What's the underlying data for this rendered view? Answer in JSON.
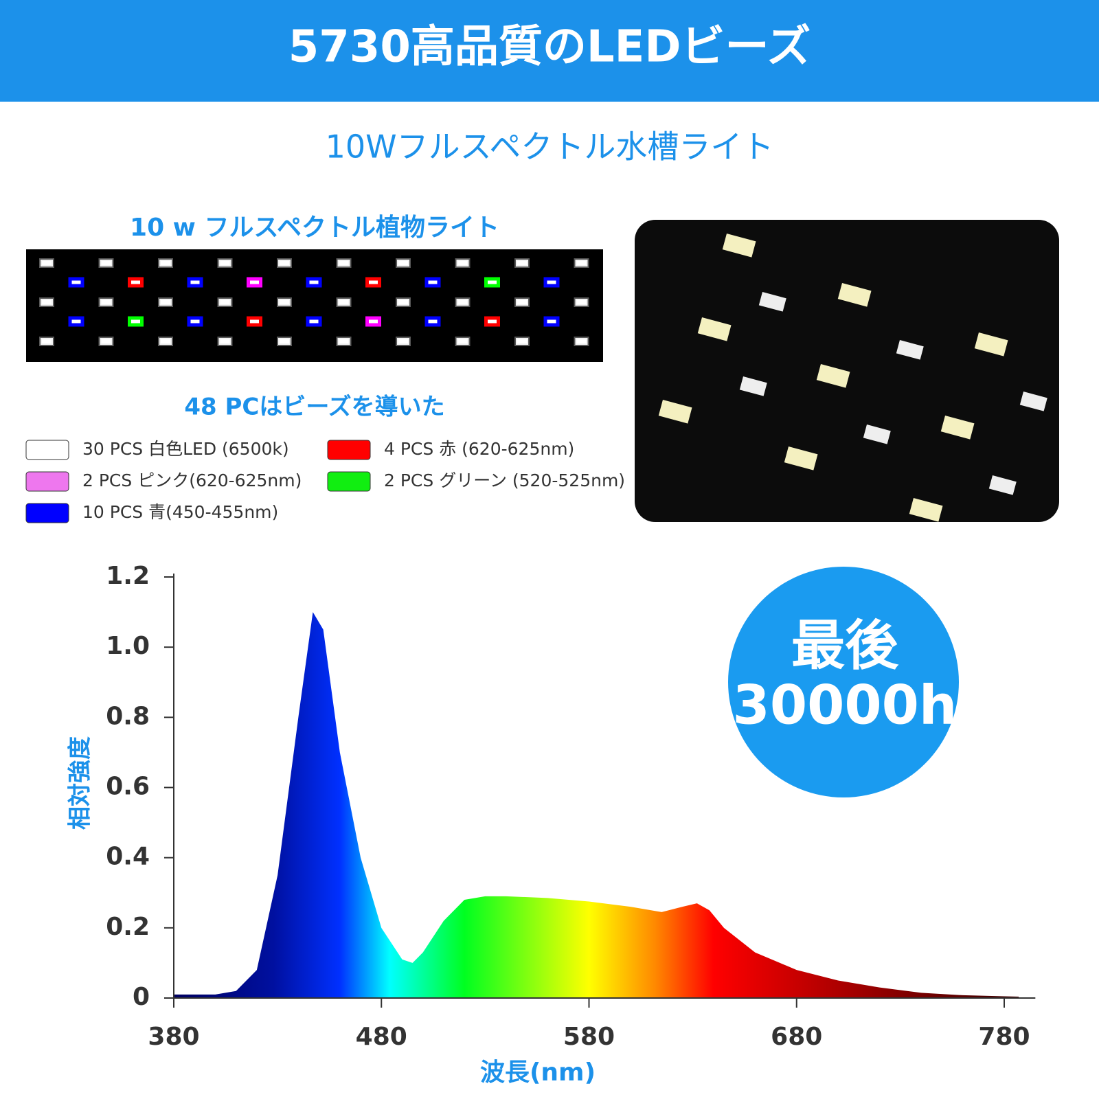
{
  "header": {
    "title": "5730高品質のLEDビーズ"
  },
  "subtitle": "10Wフルスペクトル水槽ライト",
  "panel": {
    "title": "10 w フルスペクトル植物ライト",
    "count_title": "48 PCはビーズを導いた",
    "legend": [
      {
        "label": "30 PCS 白色LED (6500k)",
        "color": "#ffffff"
      },
      {
        "label": "4 PCS 赤 (620-625nm)",
        "color": "#ff0000"
      },
      {
        "label": "2 PCS ピンク(620-625nm)",
        "color": "#ee77ee"
      },
      {
        "label": "2 PCS グリーン (520-525nm)",
        "color": "#11ee11"
      },
      {
        "label": "10 PCS 青(450-455nm)",
        "color": "#0000ff"
      }
    ]
  },
  "badge": {
    "line1": "最後",
    "line2": "30000h"
  },
  "chart_data": {
    "type": "area",
    "xlabel": "波長(nm)",
    "ylabel": "相対強度",
    "x": [
      380,
      400,
      410,
      420,
      430,
      440,
      447,
      452,
      460,
      470,
      480,
      490,
      495,
      500,
      510,
      520,
      530,
      540,
      560,
      580,
      600,
      615,
      625,
      632,
      638,
      645,
      660,
      680,
      700,
      720,
      740,
      760,
      780,
      787
    ],
    "values": [
      0.01,
      0.01,
      0.02,
      0.08,
      0.35,
      0.8,
      1.1,
      1.05,
      0.7,
      0.4,
      0.2,
      0.11,
      0.1,
      0.13,
      0.22,
      0.28,
      0.29,
      0.29,
      0.285,
      0.275,
      0.26,
      0.245,
      0.26,
      0.27,
      0.25,
      0.2,
      0.13,
      0.08,
      0.05,
      0.03,
      0.015,
      0.008,
      0.005,
      0.004
    ],
    "xlim": [
      380,
      795
    ],
    "ylim": [
      0,
      1.2
    ],
    "xticks": [
      380,
      480,
      580,
      680,
      780
    ],
    "yticks": [
      0,
      0.2,
      0.4,
      0.6,
      0.8,
      {
        "value": 1,
        "label": "1.0"
      },
      1.2
    ]
  }
}
